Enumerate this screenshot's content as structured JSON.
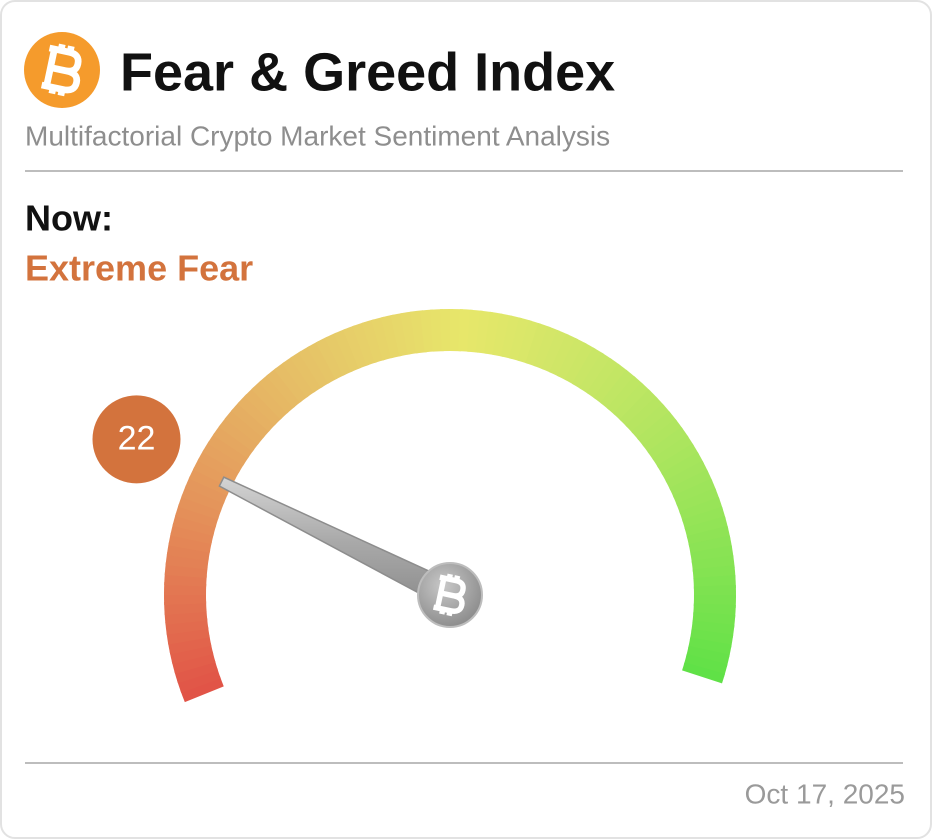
{
  "chart_data": {
    "type": "gauge",
    "title": "Fear & Greed Index",
    "subtitle": "Multifactorial Crypto Market Sentiment Analysis",
    "label": "Now:",
    "classification": "Extreme Fear",
    "value": 22,
    "range": [
      0,
      100
    ],
    "date": "Oct 17, 2025",
    "accent_color": "#d3733d"
  }
}
